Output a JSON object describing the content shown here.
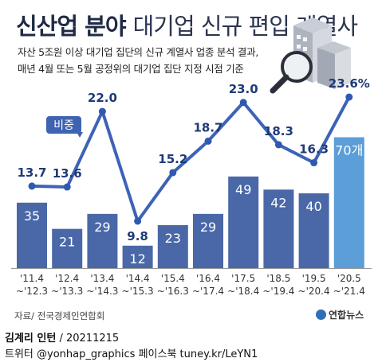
{
  "title": {
    "main": "신산업 분야",
    "rest": "대기업 신규 편입 계열사"
  },
  "subtitle": [
    "자산 5조원 이상 대기업 집단의 신규 계열사 업종 분석 결과,",
    "매년 4월 또는 5월 공정위의 대기업 집단 지정 시점 기준"
  ],
  "source": "자료/ 전국경제인연합회",
  "logo": "연합뉴스",
  "credit": {
    "line1_name": "김계리 인턴",
    "line1_date": "/ 20211215",
    "line2": "트위터 @yonhap_graphics  페이스북 tuney.kr/LeYN1"
  },
  "colors": {
    "bar": "#4a68a8",
    "bar_last": "#5b9ed8",
    "line": "#3d63b6",
    "point": "#2f59b0"
  },
  "icons": [
    "building-magnifier-icon"
  ],
  "chart_data": {
    "type": "bar+line",
    "categories": [
      [
        "'11.4",
        "~'12.3"
      ],
      [
        "'12.4",
        "~'13.3"
      ],
      [
        "'13.4",
        "~'14.3"
      ],
      [
        "'14.4",
        "~'15.3"
      ],
      [
        "'15.4",
        "~'16.3"
      ],
      [
        "'16.4",
        "~'17.4"
      ],
      [
        "'17.5",
        "~'18.4"
      ],
      [
        "'18.5",
        "~'19.4"
      ],
      [
        "'19.5",
        "~'20.4"
      ],
      [
        "'20.5",
        "~'21.4"
      ]
    ],
    "bar_series": {
      "values": [
        35,
        21,
        29,
        12,
        23,
        29,
        49,
        42,
        40,
        70
      ],
      "labels": [
        "35",
        "21",
        "29",
        "12",
        "23",
        "29",
        "49",
        "42",
        "40",
        "70개"
      ]
    },
    "line_series": {
      "name": "비중",
      "values": [
        13.7,
        13.6,
        22.0,
        9.8,
        15.2,
        18.7,
        23.0,
        18.3,
        16.3,
        23.6
      ],
      "labels": [
        "13.7",
        "13.6",
        "22.0",
        "9.8",
        "15.2",
        "18.7",
        "23.0",
        "18.3",
        "16.3",
        "23.6%"
      ]
    }
  }
}
